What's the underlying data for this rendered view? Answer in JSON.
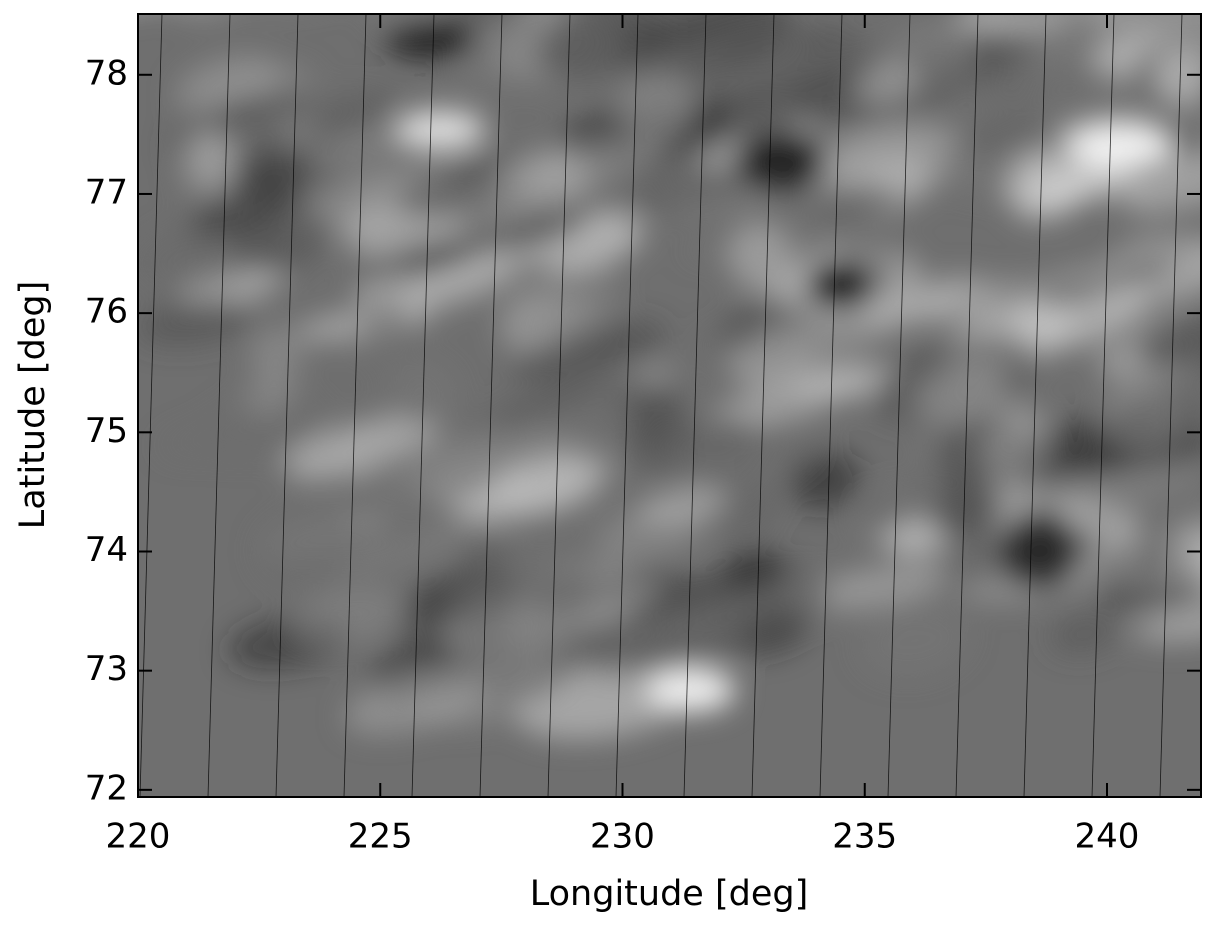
{
  "chart_data": {
    "type": "image",
    "colormap": "gray",
    "xlabel": "Longitude [deg]",
    "ylabel": "Latitude [deg]",
    "xlim": [
      220,
      241.94
    ],
    "ylim": [
      71.94,
      78.51
    ],
    "xticks": [
      220,
      225,
      230,
      235,
      240
    ],
    "yticks": [
      72,
      73,
      74,
      75,
      76,
      77,
      78
    ]
  }
}
